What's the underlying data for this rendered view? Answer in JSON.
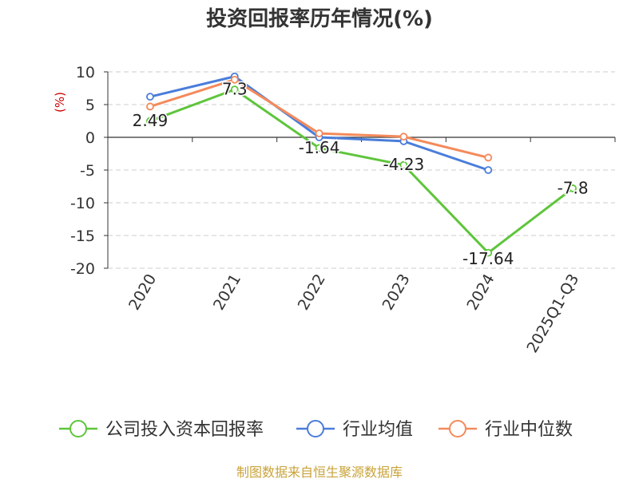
{
  "chart_data": {
    "type": "line",
    "title": "投资回报率历年情况(%)",
    "ylabel": "(%)",
    "xlabel": "",
    "ylim": [
      -20,
      10
    ],
    "yticks": [
      10,
      5,
      0,
      -5,
      -10,
      -15,
      -20
    ],
    "grid": true,
    "categories": [
      "2020",
      "2021",
      "2022",
      "2023",
      "2024",
      "2025Q1-Q3"
    ],
    "series": [
      {
        "name": "公司投入资本回报率",
        "color": "#5ec53b",
        "values": [
          2.49,
          7.3,
          -1.64,
          -4.23,
          -17.64,
          -7.8
        ],
        "labels": [
          "2.49",
          "7.3",
          "-1.64",
          "-4.23",
          "-17.64",
          "-7.8"
        ]
      },
      {
        "name": "行业均值",
        "color": "#4a7ddb",
        "values": [
          6.2,
          9.3,
          0.0,
          -0.6,
          -5.0,
          null
        ]
      },
      {
        "name": "行业中位数",
        "color": "#f48a5a",
        "values": [
          4.7,
          8.8,
          0.6,
          0.1,
          -3.1,
          null
        ]
      }
    ],
    "legend_position": "bottom"
  },
  "source_note": "制图数据来自恒生聚源数据库"
}
